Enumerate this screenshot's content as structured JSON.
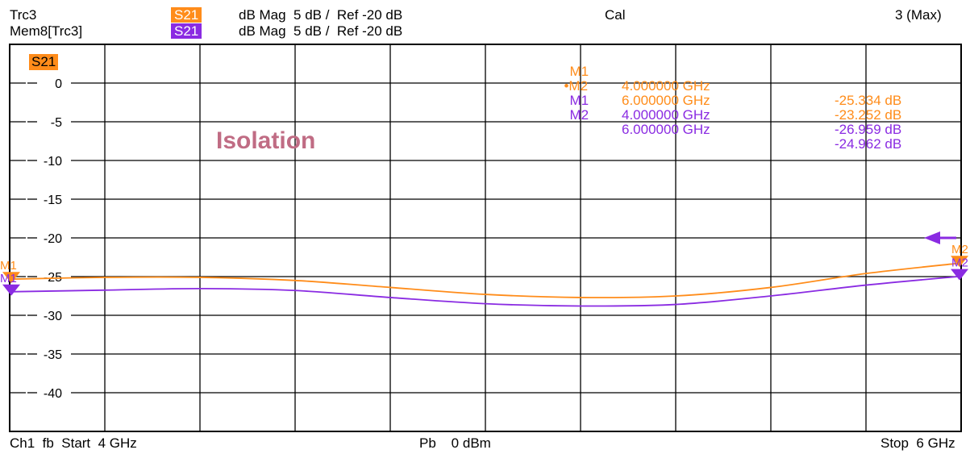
{
  "header": {
    "trace1_name": "Trc3",
    "trace1_param": "S21",
    "trace1_format": "dB Mag  5 dB /  Ref -20 dB",
    "trace1_cal": "Cal",
    "trace1_max": "3 (Max)",
    "trace2_name": "Mem8[Trc3]",
    "trace2_param": "S21",
    "trace2_format": "dB Mag  5 dB /  Ref -20 dB"
  },
  "plot_label": "S21",
  "annotation": "Isolation",
  "markers": {
    "trc": [
      {
        "name": "M1",
        "freq": "4.000000 GHz",
        "value": "-25.334 dB"
      },
      {
        "name": "•M2",
        "freq": "6.000000 GHz",
        "value": "-23.252 dB"
      }
    ],
    "mem": [
      {
        "name": "M1",
        "freq": "4.000000 GHz",
        "value": "-26.959 dB"
      },
      {
        "name": "M2",
        "freq": "6.000000 GHz",
        "value": "-24.962 dB"
      }
    ]
  },
  "footer": {
    "left": "Ch1  fb  Start  4 GHz",
    "center": "Pb    0 dBm",
    "right": "Stop  6 GHz"
  },
  "colors": {
    "trc": "#ff8c1a",
    "mem": "#8a2be2",
    "grid": "#000000",
    "annotation": "#c06c84"
  },
  "chart_data": {
    "type": "line",
    "x_unit": "GHz",
    "x": [
      4.0,
      4.2,
      4.4,
      4.6,
      4.8,
      5.0,
      5.2,
      5.4,
      5.6,
      5.8,
      6.0
    ],
    "xlim": [
      4,
      6
    ],
    "ylim": [
      -45,
      5
    ],
    "yticks": [
      0,
      -5,
      -10,
      -15,
      -20,
      -25,
      -30,
      -35,
      -40
    ],
    "ytick_labels": [
      "0",
      "-5",
      "-10",
      "-15",
      "-20",
      "-25",
      "-30",
      "-35",
      "-40"
    ],
    "grid": true,
    "series": [
      {
        "name": "Trc3",
        "color": "#ff8c1a",
        "values": [
          -25.33,
          -25.1,
          -25.1,
          -25.5,
          -26.4,
          -27.3,
          -27.7,
          -27.5,
          -26.4,
          -24.6,
          -23.25
        ]
      },
      {
        "name": "Mem8[Trc3]",
        "color": "#8a2be2",
        "values": [
          -26.96,
          -26.75,
          -26.55,
          -26.8,
          -27.7,
          -28.5,
          -28.8,
          -28.6,
          -27.5,
          -26.1,
          -24.96
        ]
      }
    ],
    "markers": [
      {
        "series": "Trc3",
        "name": "M1",
        "x": 4.0,
        "y": -25.334
      },
      {
        "series": "Trc3",
        "name": "M2",
        "x": 6.0,
        "y": -23.252
      },
      {
        "series": "Mem8[Trc3]",
        "name": "M1",
        "x": 4.0,
        "y": -26.959
      },
      {
        "series": "Mem8[Trc3]",
        "name": "M2",
        "x": 6.0,
        "y": -24.962
      }
    ],
    "reference_level": -20
  }
}
